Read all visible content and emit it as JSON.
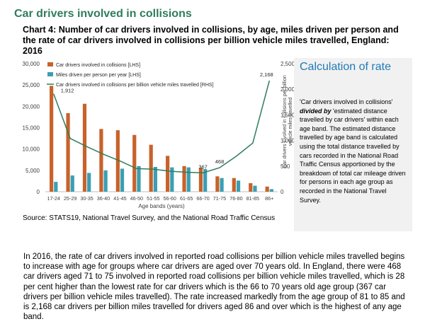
{
  "section_title": "Car drivers involved in collisions",
  "chart_title": "Chart 4: Number of car drivers involved in collisions, by age, miles driven per person and the rate of car drivers involved in collisions per billion vehicle miles travelled, England: 2016",
  "source": "Source: STATS19, National Travel Survey, and the National Road Traffic Census",
  "calculation": {
    "title": "Calculation of rate",
    "part1": "'Car drivers involved in collisions' ",
    "emph": "divided by",
    "part2": " 'estimated distance travelled by car drivers' within each age band. The estimated distance travelled by age band is calculated using the total distance travelled by cars recorded in the National Road Traffic Census apportioned by the breakdown of total car mileage driven for persons in each age group as recorded in the National Travel Survey."
  },
  "paragraph": "In 2016, the rate of car drivers involved in reported road collisions per billion vehicle miles travelled begins to increase with age for groups where car drivers are aged over 70 years old. In England, there were 468 car drivers aged 71 to 75 involved in reported road collisions per billion vehicle miles travelled, which is 28 per cent higher than the lowest rate for car drivers which is the 66 to 70 years old age group (367 car drivers per billion vehicle miles travelled). The rate increased markedly from the age group of 81 to 85 and is 2,168 car drivers per billion miles travelled for drivers aged 86 and over which is the highest of any age band.",
  "chart_data": {
    "type": "bar",
    "categories": [
      "17-24",
      "25-29",
      "30-35",
      "36-40",
      "41-45",
      "46-50",
      "51-55",
      "56-60",
      "61-65",
      "66-70",
      "71-75",
      "76-80",
      "81-85",
      "86+"
    ],
    "xlabel": "Age bands (years)",
    "ylabel": "",
    "ylabel_right": "Car drivers involved in collisions per billion vehicle miles travelled",
    "ylim": [
      0,
      30000
    ],
    "ylim_right": [
      0,
      2500
    ],
    "yticks": [
      "0",
      "5,000",
      "10,000",
      "15,000",
      "20,000",
      "25,000",
      "30,000"
    ],
    "yticks_right": [
      "0",
      "500",
      "1,000",
      "1,500",
      "2,000",
      "2,500"
    ],
    "legend_position": "top-left",
    "grid": false,
    "series": [
      {
        "name": "Car drivers involved in collisions [LHS]",
        "kind": "bar",
        "axis": "left",
        "color": "#c8622a",
        "values": [
          24800,
          18400,
          20600,
          14700,
          14400,
          13300,
          11000,
          8400,
          6000,
          5600,
          3600,
          3200,
          2000,
          1200
        ]
      },
      {
        "name": "Miles driven per person per year [LHS]",
        "kind": "bar",
        "axis": "left",
        "color": "#3a9fb4",
        "values": [
          2300,
          3800,
          4400,
          5000,
          5400,
          6000,
          5800,
          5700,
          5700,
          5300,
          3200,
          2600,
          1400,
          600
        ]
      },
      {
        "name": "Car drivers involved in collisions per billion vehicle miles travelled [RHS]",
        "kind": "line",
        "axis": "right",
        "color": "#2e7d5b",
        "values": [
          1912,
          1040,
          880,
          730,
          600,
          450,
          440,
          400,
          380,
          367,
          468,
          690,
          950,
          2168
        ]
      }
    ],
    "annotations": [
      {
        "index": 0,
        "text": "1,912"
      },
      {
        "index": 9,
        "text": "367"
      },
      {
        "index": 10,
        "text": "468"
      },
      {
        "index": 13,
        "text": "2,168"
      }
    ]
  }
}
